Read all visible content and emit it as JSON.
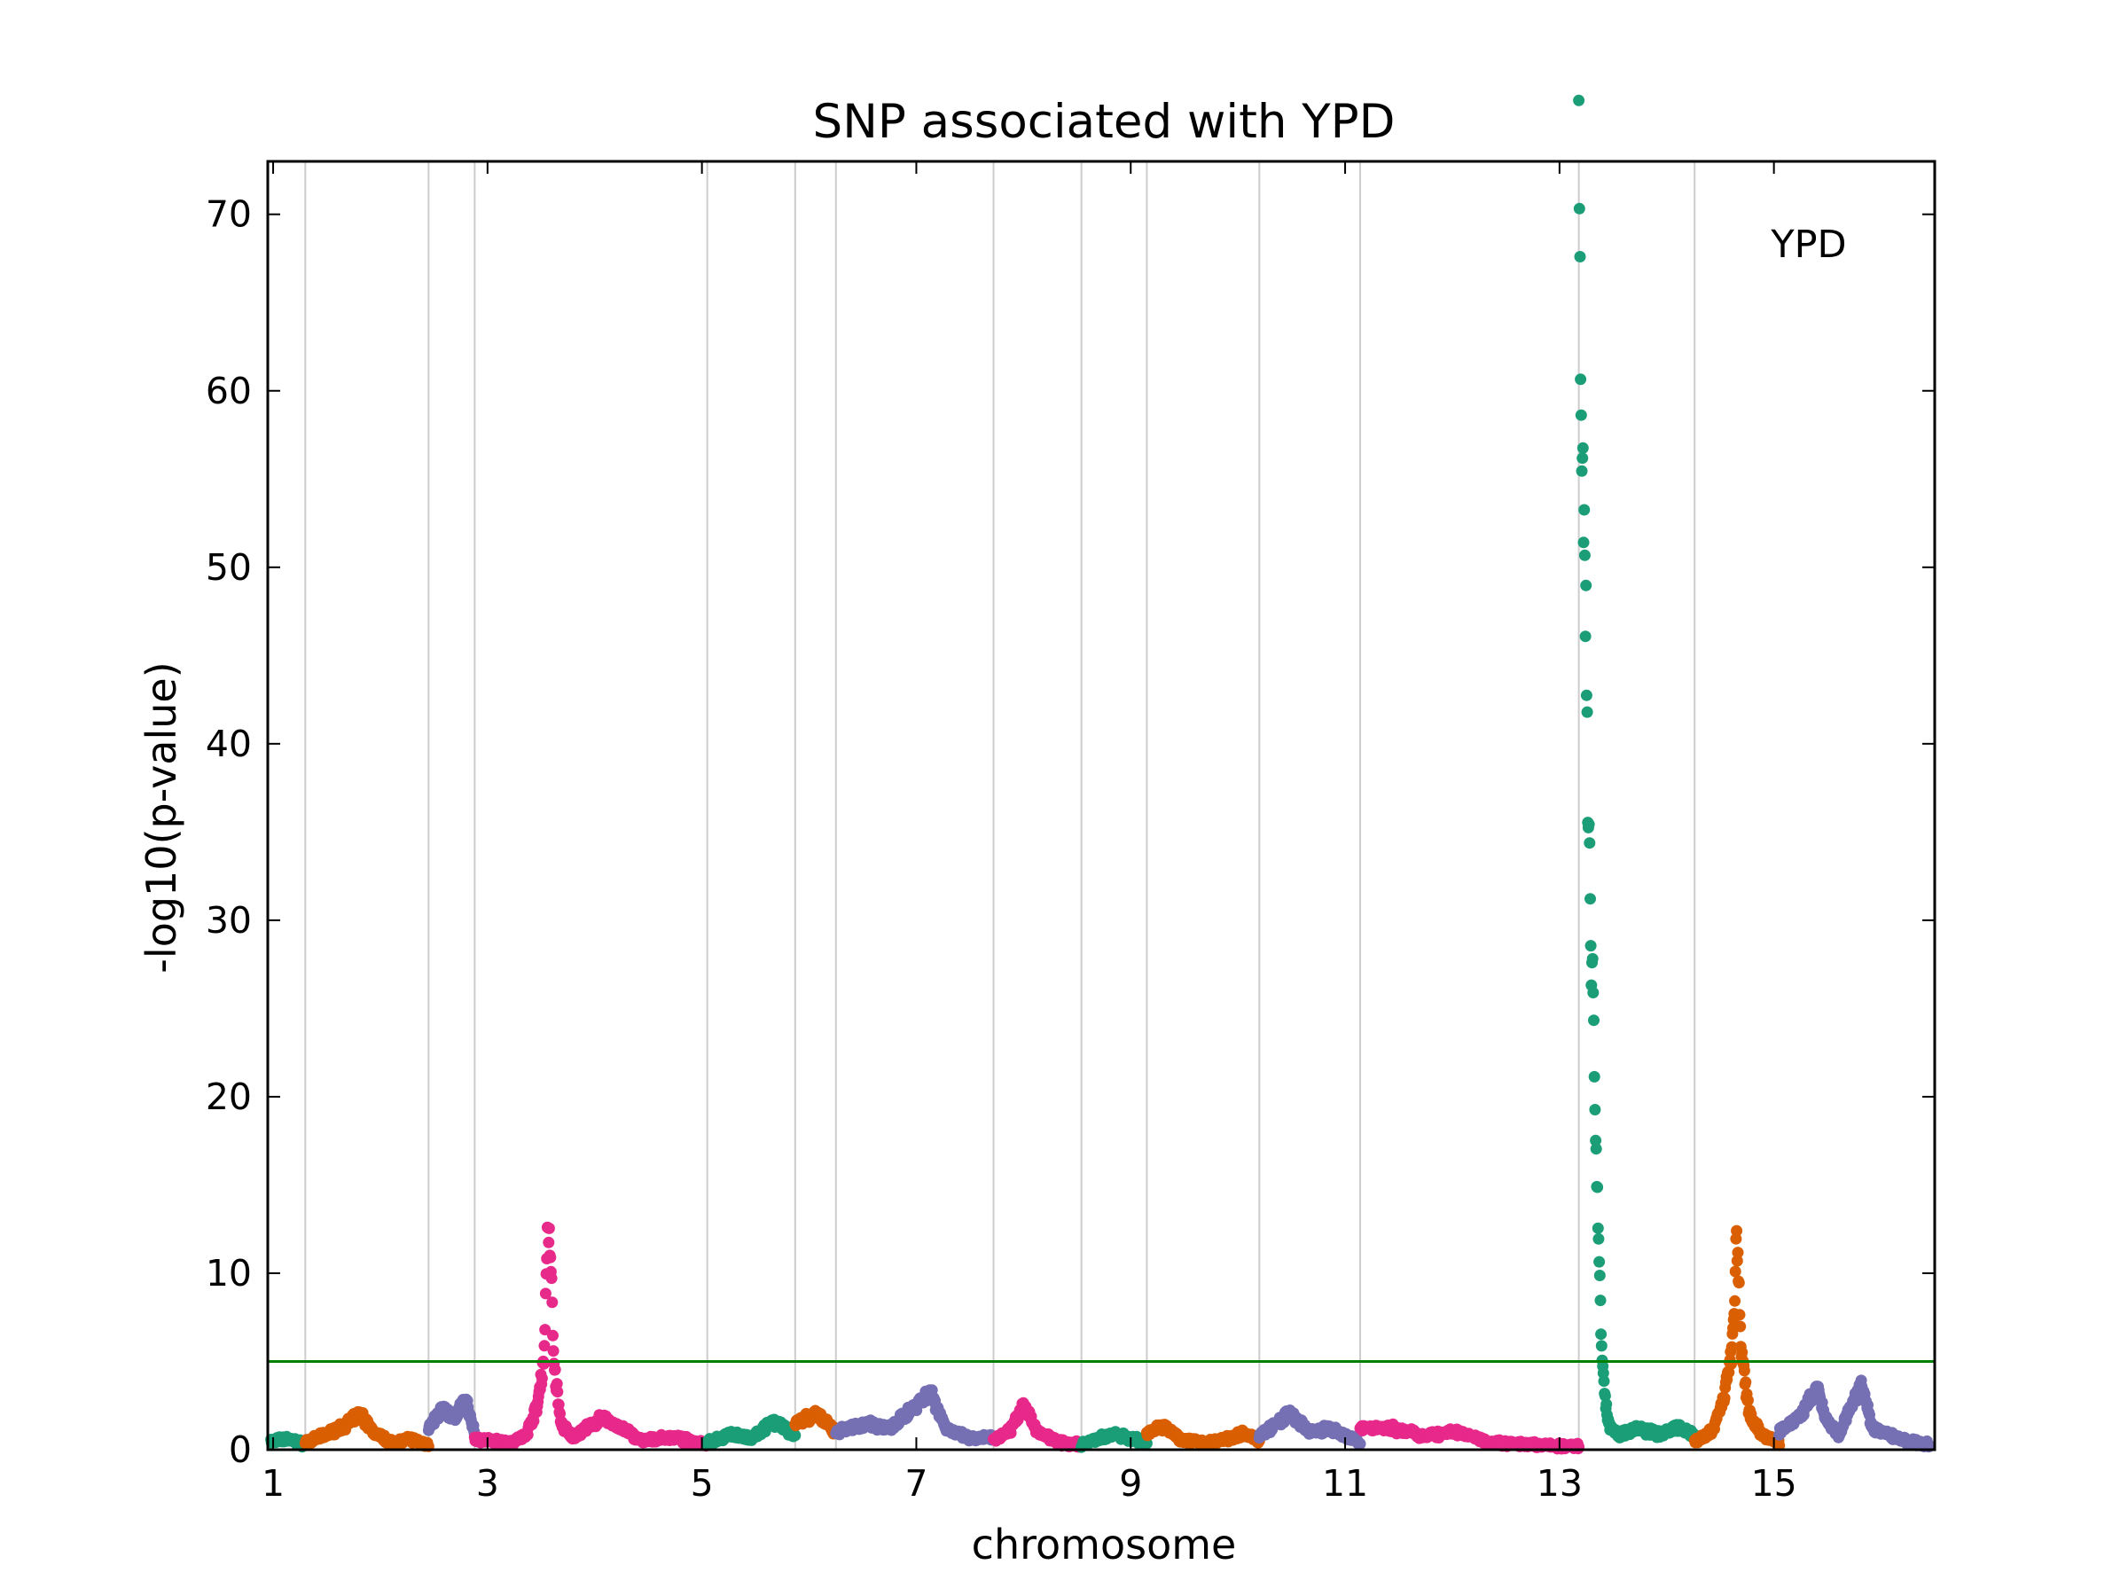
{
  "chart_data": {
    "type": "scatter",
    "title": "SNP associated with YPD",
    "xlabel": "chromosome",
    "ylabel": "-log10(p-value)",
    "xlim": [
      0.95,
      16.5
    ],
    "ylim": [
      0,
      73
    ],
    "yticks": [
      0,
      10,
      20,
      30,
      40,
      50,
      60,
      70
    ],
    "xticks": [
      {
        "x": 1,
        "label": "1"
      },
      {
        "x": 3,
        "label": "3"
      },
      {
        "x": 5,
        "label": "5"
      },
      {
        "x": 7,
        "label": "7"
      },
      {
        "x": 9,
        "label": "9"
      },
      {
        "x": 11,
        "label": "11"
      },
      {
        "x": 13,
        "label": "13"
      },
      {
        "x": 15,
        "label": "15"
      }
    ],
    "chromosome_boundaries": [
      1.3,
      2.45,
      2.88,
      5.05,
      5.87,
      6.25,
      7.72,
      8.54,
      9.15,
      10.2,
      11.14,
      13.18,
      14.26
    ],
    "threshold": 5,
    "annotation": "YPD",
    "palette": [
      "#1b9e77",
      "#d95f02",
      "#7570b3",
      "#e7298a"
    ],
    "series": [
      {
        "chrom": 1,
        "start": 0.98,
        "end": 1.3,
        "color": "#1b9e77",
        "profile": [
          [
            0,
            0.5
          ],
          [
            0.5,
            0.6
          ],
          [
            1,
            0.3
          ]
        ]
      },
      {
        "chrom": 2,
        "start": 1.3,
        "end": 2.45,
        "color": "#d95f02",
        "profile": [
          [
            0,
            0.4
          ],
          [
            0.15,
            0.8
          ],
          [
            0.3,
            1.3
          ],
          [
            0.45,
            2.0
          ],
          [
            0.55,
            1.0
          ],
          [
            0.7,
            0.4
          ],
          [
            0.85,
            0.6
          ],
          [
            1,
            0.3
          ]
        ]
      },
      {
        "chrom": 3,
        "start": 2.45,
        "end": 2.88,
        "color": "#7570b3",
        "profile": [
          [
            0,
            1.2
          ],
          [
            0.3,
            2.3
          ],
          [
            0.55,
            1.8
          ],
          [
            0.8,
            2.8
          ],
          [
            1,
            1.0
          ]
        ]
      },
      {
        "chrom": 4,
        "start": 2.88,
        "end": 5.05,
        "color": "#e7298a",
        "profile": [
          [
            0,
            0.6
          ],
          [
            0.15,
            0.4
          ],
          [
            0.22,
            0.8
          ],
          [
            0.27,
            2.5
          ],
          [
            0.3,
            5.5
          ],
          [
            0.31,
            11.8
          ],
          [
            0.325,
            11.5
          ],
          [
            0.34,
            5.0
          ],
          [
            0.37,
            1.5
          ],
          [
            0.42,
            0.7
          ],
          [
            0.55,
            1.8
          ],
          [
            0.62,
            1.3
          ],
          [
            0.72,
            0.5
          ],
          [
            0.85,
            0.7
          ],
          [
            1,
            0.3
          ]
        ]
      },
      {
        "chrom": 5,
        "start": 5.05,
        "end": 5.87,
        "color": "#1b9e77",
        "profile": [
          [
            0,
            0.4
          ],
          [
            0.3,
            0.9
          ],
          [
            0.5,
            0.6
          ],
          [
            0.75,
            1.6
          ],
          [
            1,
            0.8
          ]
        ]
      },
      {
        "chrom": 6,
        "start": 5.87,
        "end": 6.25,
        "color": "#d95f02",
        "profile": [
          [
            0,
            1.5
          ],
          [
            0.5,
            2.0
          ],
          [
            1,
            1.0
          ]
        ]
      },
      {
        "chrom": 7,
        "start": 6.25,
        "end": 7.72,
        "color": "#7570b3",
        "profile": [
          [
            0,
            1.0
          ],
          [
            0.2,
            1.5
          ],
          [
            0.35,
            1.2
          ],
          [
            0.5,
            2.5
          ],
          [
            0.6,
            3.3
          ],
          [
            0.7,
            1.2
          ],
          [
            0.85,
            0.6
          ],
          [
            1,
            0.7
          ]
        ]
      },
      {
        "chrom": 8,
        "start": 7.72,
        "end": 8.54,
        "color": "#e7298a",
        "profile": [
          [
            0,
            0.5
          ],
          [
            0.2,
            1.2
          ],
          [
            0.35,
            2.6
          ],
          [
            0.5,
            1.0
          ],
          [
            0.75,
            0.4
          ],
          [
            1,
            0.3
          ]
        ]
      },
      {
        "chrom": 9,
        "start": 8.54,
        "end": 9.15,
        "color": "#1b9e77",
        "profile": [
          [
            0,
            0.3
          ],
          [
            0.5,
            0.9
          ],
          [
            1,
            0.4
          ]
        ]
      },
      {
        "chrom": 10,
        "start": 9.15,
        "end": 10.2,
        "color": "#d95f02",
        "profile": [
          [
            0,
            1.0
          ],
          [
            0.15,
            1.3
          ],
          [
            0.3,
            0.6
          ],
          [
            0.5,
            0.4
          ],
          [
            0.7,
            0.6
          ],
          [
            0.85,
            0.9
          ],
          [
            1,
            0.5
          ]
        ]
      },
      {
        "chrom": 11,
        "start": 10.2,
        "end": 11.14,
        "color": "#7570b3",
        "profile": [
          [
            0,
            0.8
          ],
          [
            0.3,
            2.0
          ],
          [
            0.5,
            1.0
          ],
          [
            0.7,
            1.2
          ],
          [
            1,
            0.4
          ]
        ]
      },
      {
        "chrom": 12,
        "start": 11.14,
        "end": 13.18,
        "color": "#e7298a",
        "profile": [
          [
            0,
            1.3
          ],
          [
            0.15,
            1.2
          ],
          [
            0.3,
            0.8
          ],
          [
            0.45,
            1.0
          ],
          [
            0.6,
            0.4
          ],
          [
            0.75,
            0.3
          ],
          [
            0.9,
            0.2
          ],
          [
            1,
            0.2
          ]
        ]
      },
      {
        "chrom": 13,
        "start": 13.18,
        "end": 14.26,
        "color": "#1b9e77",
        "profile": [
          [
            0,
            72
          ],
          [
            0.02,
            62
          ],
          [
            0.05,
            50
          ],
          [
            0.08,
            38
          ],
          [
            0.11,
            28
          ],
          [
            0.14,
            20
          ],
          [
            0.17,
            12
          ],
          [
            0.2,
            5
          ],
          [
            0.25,
            1.5
          ],
          [
            0.35,
            0.8
          ],
          [
            0.5,
            1.2
          ],
          [
            0.7,
            0.9
          ],
          [
            0.85,
            1.3
          ],
          [
            1,
            0.8
          ]
        ]
      },
      {
        "chrom": 14,
        "start": 14.26,
        "end": 15.05,
        "color": "#d95f02",
        "profile": [
          [
            0,
            0.5
          ],
          [
            0.2,
            1.0
          ],
          [
            0.35,
            3.0
          ],
          [
            0.45,
            6.0
          ],
          [
            0.5,
            12.2
          ],
          [
            0.55,
            5.5
          ],
          [
            0.65,
            2.0
          ],
          [
            0.8,
            0.8
          ],
          [
            1,
            0.4
          ]
        ]
      },
      {
        "chrom": 15,
        "start": 15.05,
        "end": 16.45,
        "color": "#7570b3",
        "profile": [
          [
            0,
            1.0
          ],
          [
            0.15,
            2.0
          ],
          [
            0.25,
            3.5
          ],
          [
            0.32,
            1.5
          ],
          [
            0.4,
            0.8
          ],
          [
            0.48,
            2.5
          ],
          [
            0.55,
            3.6
          ],
          [
            0.62,
            1.2
          ],
          [
            0.75,
            0.8
          ],
          [
            0.85,
            0.5
          ],
          [
            1,
            0.3
          ]
        ]
      }
    ]
  }
}
